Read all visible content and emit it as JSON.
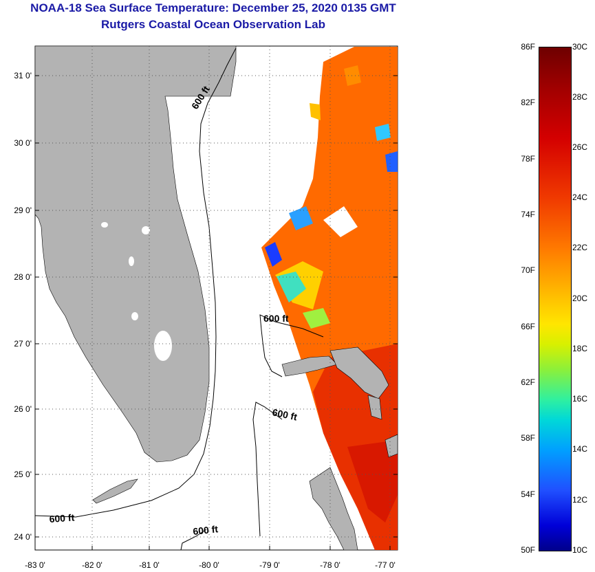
{
  "header": {
    "title": "NOAA-18 Sea Surface Temperature:  December 25, 2020 0135 GMT",
    "subtitle": "Rutgers Coastal Ocean Observation Lab"
  },
  "map": {
    "lat_labels": [
      "31 0'",
      "30 0'",
      "29 0'",
      "28 0'",
      "27 0'",
      "26 0'",
      "25 0'",
      "24 0'"
    ],
    "lon_labels": [
      "-83 0'",
      "-82 0'",
      "-81 0'",
      "-80 0'",
      "-79 0'",
      "-78 0'",
      "-77 0'"
    ],
    "contour_labels": [
      "600 ft",
      "600 ft",
      "600 ft",
      "600 ft",
      "600 ft"
    ],
    "colors": {
      "land": "#b3b3b3",
      "title": "#1a1aa6",
      "grid": "#555555"
    }
  },
  "colorbar": {
    "fahrenheit": [
      "86F",
      "82F",
      "78F",
      "74F",
      "70F",
      "66F",
      "62F",
      "58F",
      "54F",
      "50F"
    ],
    "celsius": [
      "30C",
      "28C",
      "26C",
      "24C",
      "22C",
      "20C",
      "18C",
      "16C",
      "14C",
      "12C",
      "10C"
    ],
    "range_f": [
      50,
      86
    ],
    "range_c": [
      10,
      30
    ]
  }
}
